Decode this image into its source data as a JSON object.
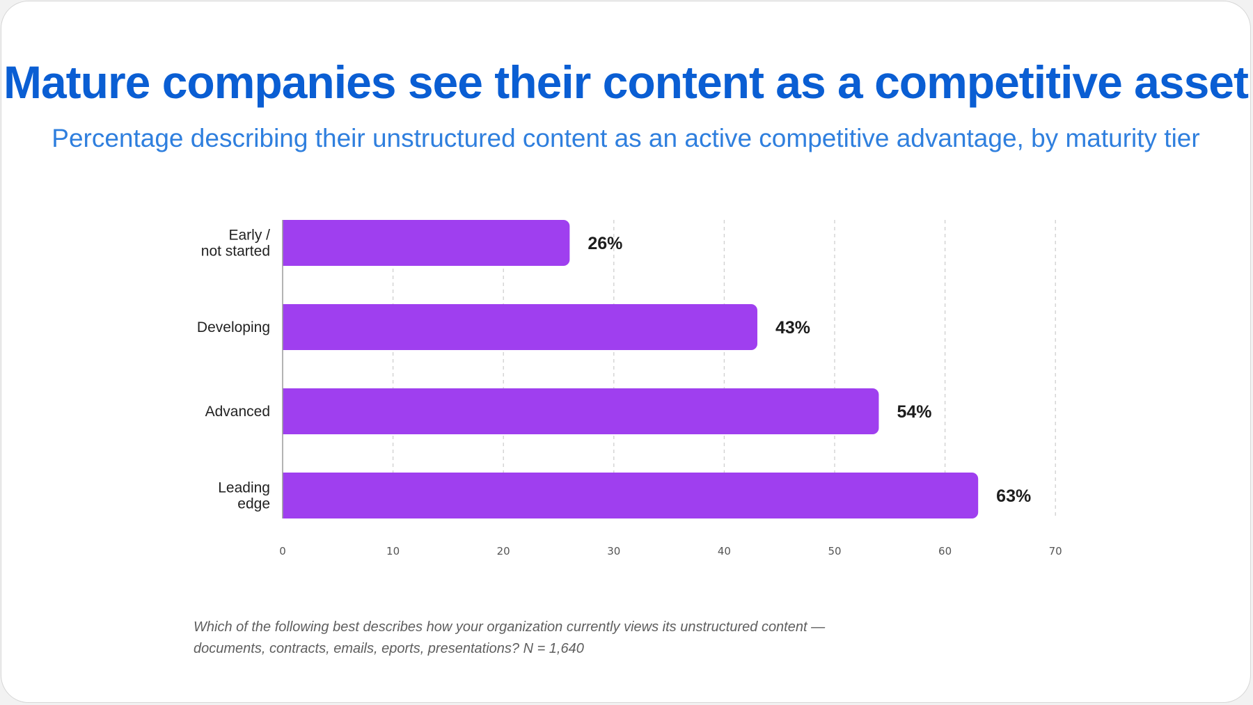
{
  "header": {
    "title": "Mature companies see their content as a competitive asset",
    "subtitle": "Percentage describing their unstructured content as an active competitive advantage, by maturity tier"
  },
  "chart_data": {
    "type": "bar",
    "orientation": "horizontal",
    "title": "Mature companies see their content as a competitive asset",
    "subtitle": "Percentage describing their unstructured content as an active competitive advantage, by maturity tier",
    "categories": [
      [
        "Early /",
        "not started"
      ],
      [
        "Developing"
      ],
      [
        "Advanced"
      ],
      [
        "Leading",
        "edge"
      ]
    ],
    "values": [
      26,
      43,
      54,
      63
    ],
    "data_labels": [
      "26%",
      "43%",
      "54%",
      "63%"
    ],
    "xlim": [
      0,
      70
    ],
    "xticks": [
      0,
      10,
      20,
      30,
      40,
      50,
      60,
      70
    ],
    "grid": "vertical dashed",
    "bar_color": "#9f3fef",
    "xlabel": "",
    "ylabel": ""
  },
  "footnote": {
    "line1": "Which of the following best describes how your organization currently views its unstructured content —",
    "line2": "documents, contracts, emails, eports, presentations? N = 1,640"
  },
  "colors": {
    "title": "#0a5ed3",
    "subtitle": "#2f7fde",
    "bar": "#9f3fef"
  }
}
